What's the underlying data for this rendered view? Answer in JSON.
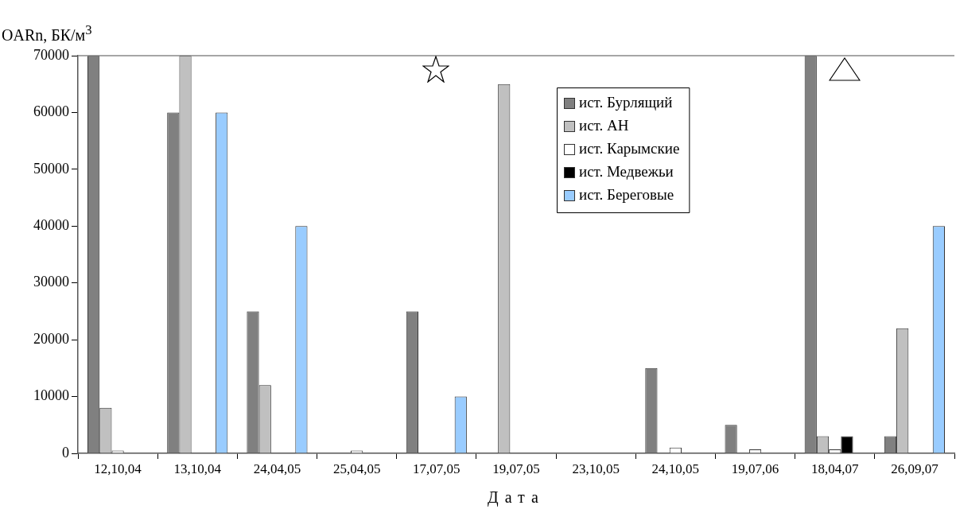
{
  "chart_data": {
    "type": "bar",
    "ylabel": "OARn, БК/м$^{3}$",
    "xlabel": "Дата",
    "categories": [
      "12,10,04",
      "13,10,04",
      "24,04,05",
      "25,04,05",
      "17,07,05",
      "19,07,05",
      "23,10,05",
      "24,10,05",
      "19,07,06",
      "18,04,07",
      "26,09,07"
    ],
    "series": [
      {
        "name": "ист. Бурлящий",
        "color": "#808080",
        "values": [
          70000,
          60000,
          25000,
          null,
          25000,
          null,
          null,
          15000,
          5000,
          70000,
          3000
        ]
      },
      {
        "name": "ист. АН",
        "color": "#c0c0c0",
        "values": [
          8000,
          70000,
          12000,
          null,
          null,
          65000,
          null,
          null,
          null,
          3000,
          22000
        ]
      },
      {
        "name": "ист. Карымские",
        "color": "#ffffff",
        "values": [
          500,
          null,
          null,
          500,
          null,
          null,
          null,
          1000,
          700,
          700,
          null
        ]
      },
      {
        "name": "ист. Медвежьи",
        "color": "#000000",
        "values": [
          null,
          null,
          null,
          null,
          null,
          null,
          null,
          null,
          null,
          3000,
          null
        ]
      },
      {
        "name": "ист. Береговые",
        "color": "#99ccff",
        "values": [
          null,
          60000,
          40000,
          null,
          10000,
          null,
          null,
          null,
          null,
          null,
          40000
        ]
      }
    ],
    "ylim": [
      0,
      70000
    ],
    "yticks": [
      0,
      10000,
      20000,
      30000,
      40000,
      50000,
      60000,
      70000
    ],
    "grid": false,
    "legend": "top right"
  }
}
